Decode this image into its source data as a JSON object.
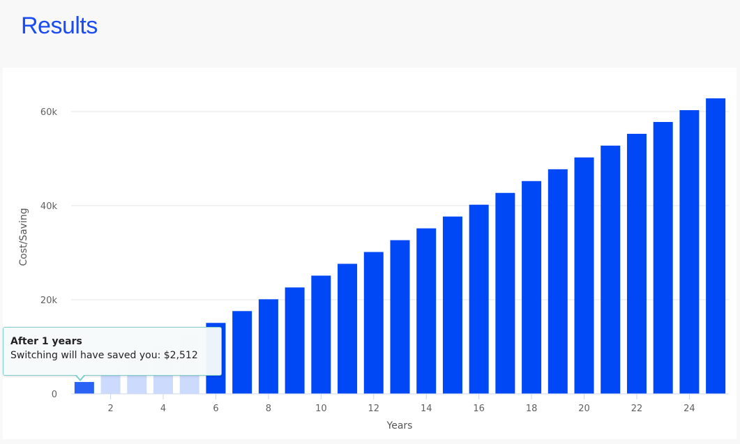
{
  "page": {
    "title": "Results"
  },
  "chart_data": {
    "type": "bar",
    "xlabel": "Years",
    "ylabel": "Cost/Saving",
    "x": [
      1,
      2,
      3,
      4,
      5,
      6,
      7,
      8,
      9,
      10,
      11,
      12,
      13,
      14,
      15,
      16,
      17,
      18,
      19,
      20,
      21,
      22,
      23,
      24,
      25
    ],
    "values": [
      2512,
      5024,
      7536,
      10048,
      12560,
      15072,
      17584,
      20096,
      22608,
      25120,
      27632,
      30144,
      32656,
      35168,
      37680,
      40192,
      42704,
      45216,
      47728,
      50240,
      52752,
      55264,
      57776,
      60288,
      62800
    ],
    "xticks": [
      "2",
      "4",
      "6",
      "8",
      "10",
      "12",
      "14",
      "16",
      "18",
      "20",
      "22",
      "24"
    ],
    "yticks": [
      "0",
      "20k",
      "40k",
      "60k"
    ],
    "ylim": [
      0,
      70000
    ],
    "grid": "horizontal",
    "bar_color": "#0047f5",
    "highlight_color": "#2a62f5",
    "tooltip": {
      "title": "After 1 years",
      "body": "Switching will have saved you: $2,512"
    }
  }
}
